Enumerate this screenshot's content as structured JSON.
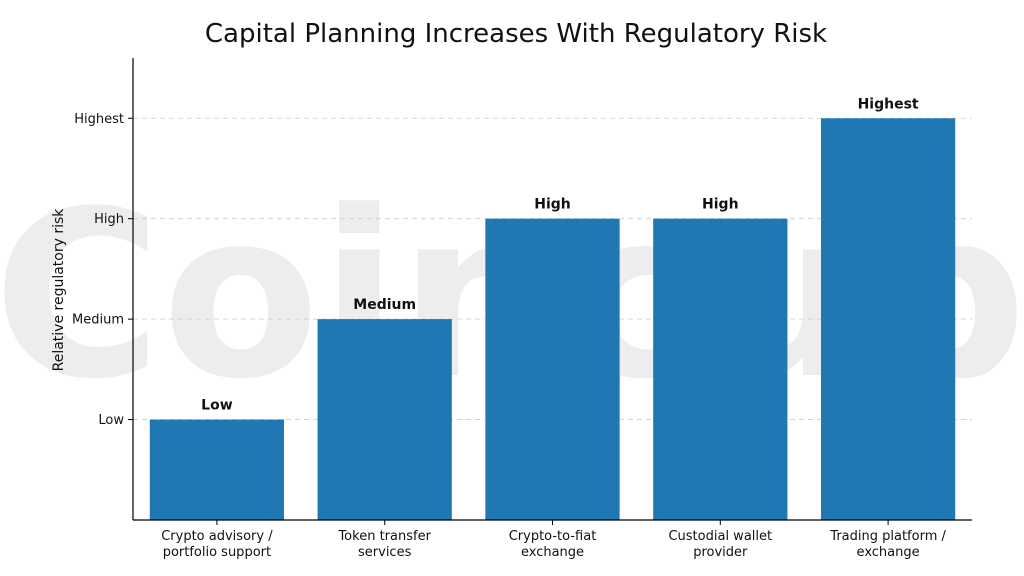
{
  "watermark": "Coincub",
  "chart_data": {
    "type": "bar",
    "title": "Capital Planning Increases With Regulatory Risk",
    "xlabel": "",
    "ylabel": "Relative regulatory risk",
    "y_ticks": [
      {
        "value": 1,
        "label": "Low"
      },
      {
        "value": 2,
        "label": "Medium"
      },
      {
        "value": 3,
        "label": "High"
      },
      {
        "value": 4,
        "label": "Highest"
      }
    ],
    "ylim": [
      0,
      4.6
    ],
    "grid": true,
    "bar_color": "#1f77b4",
    "categories": [
      [
        "Crypto advisory /",
        "portfolio support"
      ],
      [
        "Token transfer",
        "services"
      ],
      [
        "Crypto-to-fiat",
        "exchange"
      ],
      [
        "Custodial wallet",
        "provider"
      ],
      [
        "Trading platform /",
        "exchange"
      ]
    ],
    "values": [
      1,
      2,
      3,
      3,
      4
    ],
    "data_labels": [
      "Low",
      "Medium",
      "High",
      "High",
      "Highest"
    ]
  }
}
